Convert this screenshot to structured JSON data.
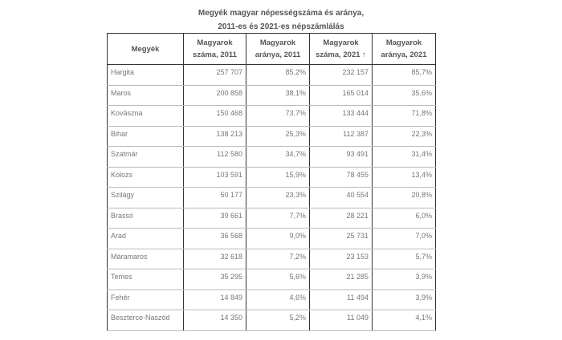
{
  "title": {
    "line1": "Megyék magyar népességszáma és aránya,",
    "line2": "2011-es és 2021-es népszámlálás"
  },
  "headers": [
    "Megyék",
    "Magyarok száma, 2011",
    "Magyarok aránya, 2011",
    "Magyarok száma, 2021 ↑",
    "Magyarok aránya, 2021"
  ],
  "rows": [
    [
      "Hargita",
      "257 707",
      "85,2%",
      "232 157",
      "85,7%"
    ],
    [
      "Maros",
      "200 858",
      "38,1%",
      "165 014",
      "35,6%"
    ],
    [
      "Kovászna",
      "150 468",
      "73,7%",
      "133 444",
      "71,8%"
    ],
    [
      "Bihar",
      "138 213",
      "25,3%",
      "112 387",
      "22,3%"
    ],
    [
      "Szatmár",
      "112 580",
      "34,7%",
      "93 491",
      "31,4%"
    ],
    [
      "Kolozs",
      "103 591",
      "15,9%",
      "78 455",
      "13,4%"
    ],
    [
      "Szilágy",
      "50 177",
      "23,3%",
      "40 554",
      "20,8%"
    ],
    [
      "Brassó",
      "39 661",
      "7,7%",
      "28 221",
      "6,0%"
    ],
    [
      "Arad",
      "36 568",
      "9,0%",
      "25 731",
      "7,0%"
    ],
    [
      "Máramaros",
      "32 618",
      "7,2%",
      "23 153",
      "5,7%"
    ],
    [
      "Temes",
      "35 295",
      "5,6%",
      "21 285",
      "3,9%"
    ],
    [
      "Fehér",
      "14 849",
      "4,6%",
      "11 494",
      "3,9%"
    ],
    [
      "Beszterce-Naszód",
      "14 350",
      "5,2%",
      "11 049",
      "4,1%"
    ]
  ]
}
